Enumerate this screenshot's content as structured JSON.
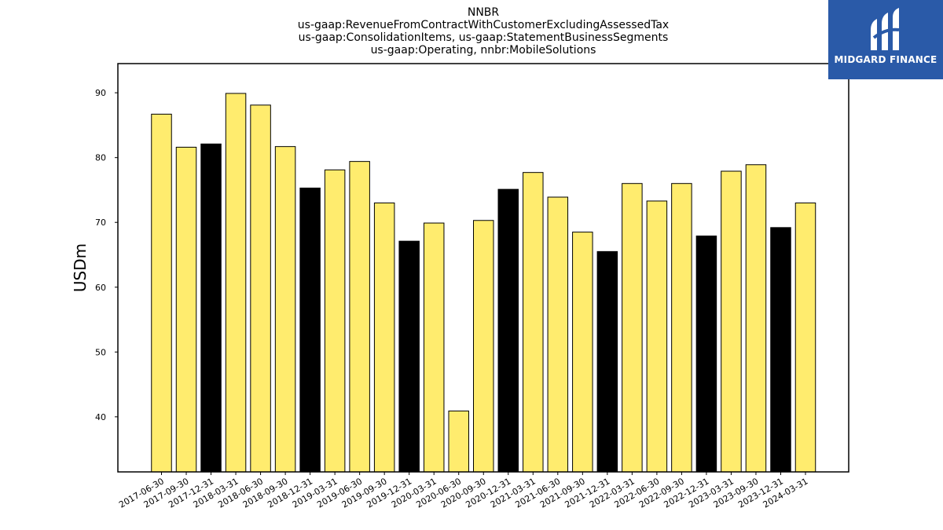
{
  "brand": {
    "name": "MIDGARD FINANCE",
    "background": "#2a5aa8",
    "icon": "midgard-logo-icon"
  },
  "chart_data": {
    "type": "bar",
    "title_lines": [
      "NNBR",
      "us-gaap:RevenueFromContractWithCustomerExcludingAssessedTax",
      "us-gaap:ConsolidationItems, us-gaap:StatementBusinessSegments",
      "us-gaap:Operating, nnbr:MobileSolutions"
    ],
    "xlabel": "",
    "ylabel": "USDm",
    "ylim": [
      31.5,
      94.5
    ],
    "yticks": [
      40,
      50,
      60,
      70,
      80,
      90
    ],
    "grid": false,
    "legend": "none",
    "colors": {
      "quarter": "#ffec6e",
      "year_end": "#000000",
      "edge": "#000000"
    },
    "categories": [
      "2017-06-30",
      "2017-09-30",
      "2017-12-31",
      "2018-03-31",
      "2018-06-30",
      "2018-09-30",
      "2018-12-31",
      "2019-03-31",
      "2019-06-30",
      "2019-09-30",
      "2019-12-31",
      "2020-03-31",
      "2020-06-30",
      "2020-09-30",
      "2020-12-31",
      "2021-03-31",
      "2021-06-30",
      "2021-09-30",
      "2021-12-31",
      "2022-03-31",
      "2022-06-30",
      "2022-09-30",
      "2022-12-31",
      "2023-03-31",
      "2023-09-30",
      "2023-12-31",
      "2024-03-31"
    ],
    "values": [
      86.7,
      81.6,
      82.1,
      89.9,
      88.1,
      81.7,
      75.3,
      78.1,
      79.4,
      73.0,
      67.1,
      69.9,
      40.9,
      70.3,
      75.1,
      77.7,
      73.9,
      68.5,
      65.5,
      76.0,
      73.3,
      76.0,
      67.9,
      77.9,
      78.9,
      69.2,
      73.0
    ]
  }
}
